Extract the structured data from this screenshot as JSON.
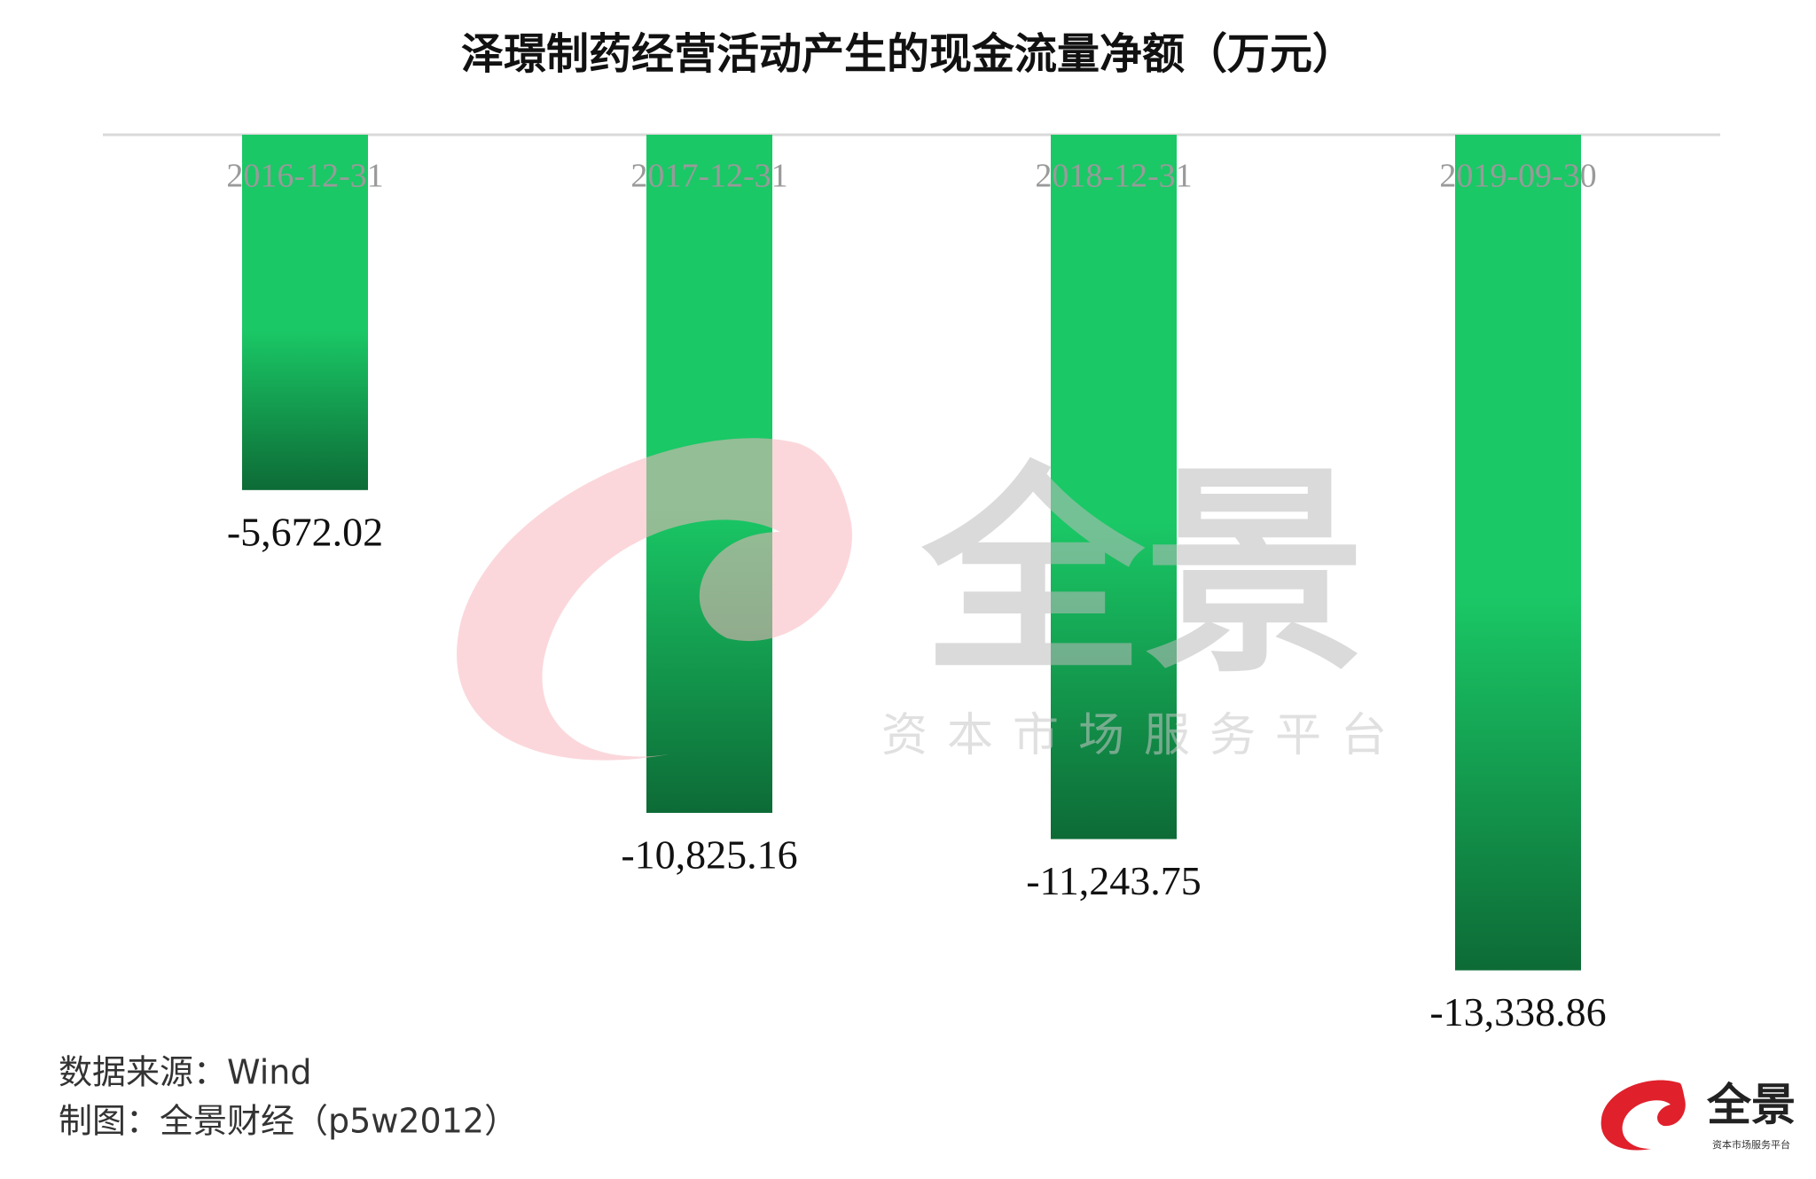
{
  "chart_data": {
    "type": "bar",
    "title": "泽璟制药经营活动产生的现金流量净额（万元）",
    "categories": [
      "2016-12-31",
      "2017-12-31",
      "2018-12-31",
      "2019-09-30"
    ],
    "values": [
      -5672.02,
      -10825.16,
      -11243.75,
      -13338.86
    ],
    "value_labels": [
      "-5,672.02",
      "-10,825.16",
      "-11,243.75",
      "-13,338.86"
    ],
    "color": "#1ac866",
    "gradient_end": "#0d6b36",
    "ylim": [
      -15000,
      0
    ]
  },
  "source": "数据来源：Wind",
  "credit": "制图：全景财经（p5w2012）",
  "watermark": {
    "brand": "全景",
    "slogan": "资本市场服务平台"
  },
  "logo": {
    "brand": "全景",
    "slogan": "资本市场服务平台"
  }
}
